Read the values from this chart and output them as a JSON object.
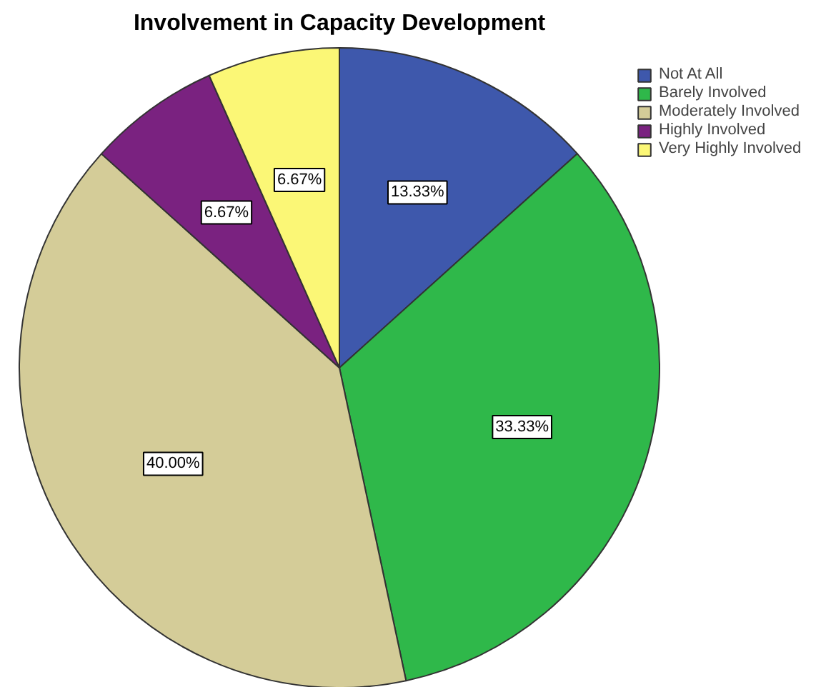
{
  "chart_data": {
    "type": "pie",
    "title": "Involvement in Capacity Development",
    "categories": [
      "Not At All",
      "Barely Involved",
      "Moderately Involved",
      "Highly Involved",
      "Very Highly Involved"
    ],
    "values": [
      13.33,
      33.33,
      40.0,
      6.67,
      6.67
    ],
    "colors": [
      "#3e58ac",
      "#2fb84a",
      "#d4cc98",
      "#7a2280",
      "#fbf776"
    ],
    "value_labels": [
      "13.33%",
      "33.33%",
      "40.00%",
      "6.67%",
      "6.67%"
    ],
    "legend": "top right"
  }
}
